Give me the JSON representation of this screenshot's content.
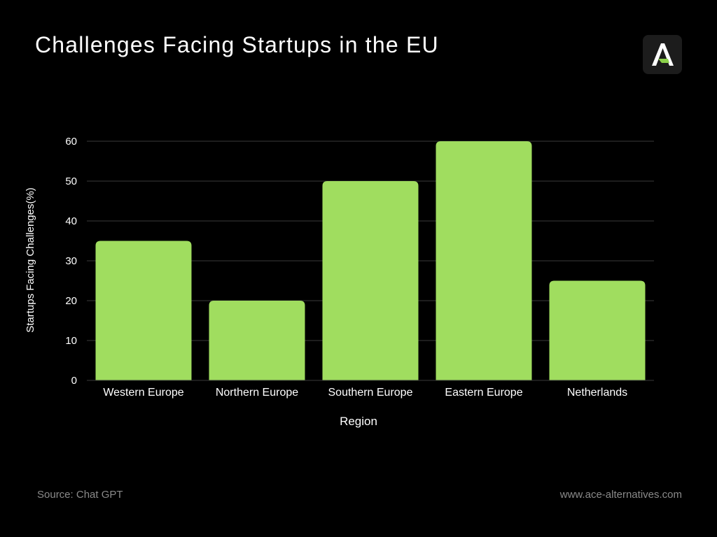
{
  "header": {
    "title": "Challenges Facing Startups in the EU"
  },
  "logo": {
    "icon": "ace-alternatives-logo-icon",
    "letter": "A",
    "accent_color": "#8bd14a"
  },
  "footer": {
    "source": "Source: Chat GPT",
    "website": "www.ace-alternatives.com"
  },
  "chart_data": {
    "type": "bar",
    "title": "Challenges Facing Startups in the EU",
    "xlabel": "Region",
    "ylabel": "Startups Facing Challenges(%)",
    "categories": [
      "Western Europe",
      "Northern Europe",
      "Southern Europe",
      "Eastern Europe",
      "Netherlands"
    ],
    "values": [
      35,
      20,
      50,
      60,
      25
    ],
    "ylim": [
      0,
      60
    ],
    "yticks": [
      0,
      10,
      20,
      30,
      40,
      50,
      60
    ],
    "grid": true,
    "legend": "none",
    "bar_color": "#a0dd5f",
    "grid_color": "#3a3a3a"
  }
}
